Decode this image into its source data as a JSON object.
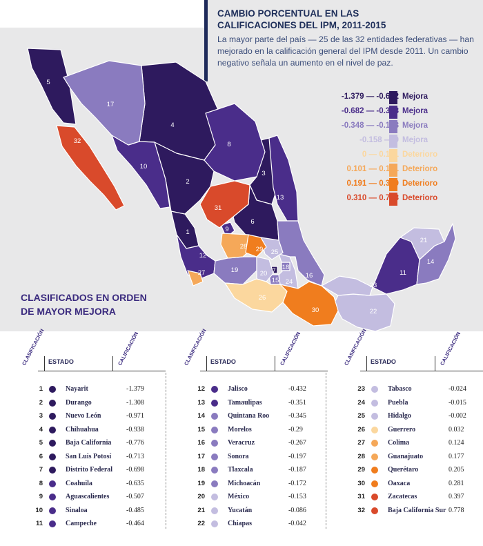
{
  "header": {
    "title": "CAMBIO PORCENTUAL EN LAS CALIFICACIONES DEL IPM, 2011-2015",
    "subtitle": "La mayor parte del país — 25 de las 32 entidades federativas — han mejorado en la calificación general del IPM desde 2011. Un cambio negativo señala un aumento en el nivel de paz."
  },
  "legend": [
    {
      "range": "-1.379 — -0.682",
      "label": "Mejora",
      "color": "#2e1a5e"
    },
    {
      "range": "-0.682 — -0.348",
      "label": "Mejora",
      "color": "#4a2d8a"
    },
    {
      "range": "-0.348 — -0.158",
      "label": "Mejora",
      "color": "#8a7bbf"
    },
    {
      "range": "-0.158 — 0",
      "label": "Mejora",
      "color": "#c3bde0"
    },
    {
      "range": "0 — 0.101",
      "label": "Deterioro",
      "color": "#fbd79e"
    },
    {
      "range": "0.101 — 0.191",
      "label": "Deterioro",
      "color": "#f5a859"
    },
    {
      "range": "0.191 — 0.310",
      "label": "Deterioro",
      "color": "#f07d1e"
    },
    {
      "range": "0.310 — 0.778",
      "label": "Deterioro",
      "color": "#d94a2b"
    }
  ],
  "ranking": {
    "title_line1": "CLASIFICADOS EN ORDEN",
    "title_line2": "DE MAYOR MEJORA",
    "col_rank": "CLASIFICACIÓN",
    "col_state": "ESTADO",
    "col_score": "CALIFICACIÓN"
  },
  "states": [
    {
      "rank": "1",
      "name": "Nayarit",
      "value": "-1.379",
      "color": "#2e1a5e"
    },
    {
      "rank": "2",
      "name": "Durango",
      "value": "-1.308",
      "color": "#2e1a5e"
    },
    {
      "rank": "3",
      "name": "Nuevo León",
      "value": "-0.971",
      "color": "#2e1a5e"
    },
    {
      "rank": "4",
      "name": "Chihuahua",
      "value": "-0.938",
      "color": "#2e1a5e"
    },
    {
      "rank": "5",
      "name": "Baja California",
      "value": "-0.776",
      "color": "#2e1a5e"
    },
    {
      "rank": "6",
      "name": "San Luis Potosí",
      "value": "-0.713",
      "color": "#2e1a5e"
    },
    {
      "rank": "7",
      "name": "Distrito Federal",
      "value": "-0.698",
      "color": "#2e1a5e"
    },
    {
      "rank": "8",
      "name": "Coahuila",
      "value": "-0.635",
      "color": "#4a2d8a"
    },
    {
      "rank": "9",
      "name": "Aguascalientes",
      "value": "-0.507",
      "color": "#4a2d8a"
    },
    {
      "rank": "10",
      "name": "Sinaloa",
      "value": "-0.485",
      "color": "#4a2d8a"
    },
    {
      "rank": "11",
      "name": "Campeche",
      "value": "-0.464",
      "color": "#4a2d8a"
    },
    {
      "rank": "12",
      "name": "Jalisco",
      "value": "-0.432",
      "color": "#4a2d8a"
    },
    {
      "rank": "13",
      "name": "Tamaulipas",
      "value": "-0.351",
      "color": "#4a2d8a"
    },
    {
      "rank": "14",
      "name": "Quintana Roo",
      "value": "-0.345",
      "color": "#8a7bbf"
    },
    {
      "rank": "15",
      "name": "Morelos",
      "value": "-0.29",
      "color": "#8a7bbf"
    },
    {
      "rank": "16",
      "name": "Veracruz",
      "value": "-0.267",
      "color": "#8a7bbf"
    },
    {
      "rank": "17",
      "name": "Sonora",
      "value": "-0.197",
      "color": "#8a7bbf"
    },
    {
      "rank": "18",
      "name": "Tlaxcala",
      "value": "-0.187",
      "color": "#8a7bbf"
    },
    {
      "rank": "19",
      "name": "Michoacán",
      "value": "-0.172",
      "color": "#8a7bbf"
    },
    {
      "rank": "20",
      "name": "México",
      "value": "-0.153",
      "color": "#c3bde0"
    },
    {
      "rank": "21",
      "name": "Yucatán",
      "value": "-0.086",
      "color": "#c3bde0"
    },
    {
      "rank": "22",
      "name": "Chiapas",
      "value": "-0.042",
      "color": "#c3bde0"
    },
    {
      "rank": "23",
      "name": "Tabasco",
      "value": "-0.024",
      "color": "#c3bde0"
    },
    {
      "rank": "24",
      "name": "Puebla",
      "value": "-0.015",
      "color": "#c3bde0"
    },
    {
      "rank": "25",
      "name": "Hidalgo",
      "value": "-0.002",
      "color": "#c3bde0"
    },
    {
      "rank": "26",
      "name": "Guerrero",
      "value": "0.032",
      "color": "#fbd79e"
    },
    {
      "rank": "27",
      "name": "Colima",
      "value": "0.124",
      "color": "#f5a859"
    },
    {
      "rank": "28",
      "name": "Guanajuato",
      "value": "0.177",
      "color": "#f5a859"
    },
    {
      "rank": "29",
      "name": "Querétaro",
      "value": "0.205",
      "color": "#f07d1e"
    },
    {
      "rank": "30",
      "name": "Oaxaca",
      "value": "0.281",
      "color": "#f07d1e"
    },
    {
      "rank": "31",
      "name": "Zacatecas",
      "value": "0.397",
      "color": "#d94a2b"
    },
    {
      "rank": "32",
      "name": "Baja California Sur",
      "value": "0.778",
      "color": "#d94a2b"
    }
  ]
}
